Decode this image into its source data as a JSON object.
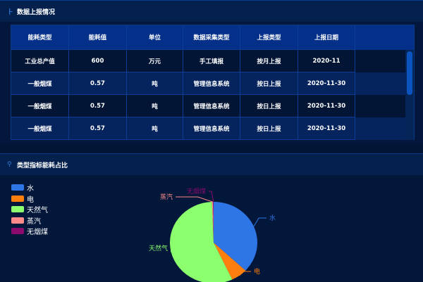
{
  "panel1": {
    "title": "数据上报情况",
    "icon": "pulse-icon"
  },
  "table": {
    "headers": [
      "能耗类型",
      "能耗值",
      "单位",
      "数据采集类型",
      "上报类型",
      "上报日期"
    ],
    "rows": [
      [
        "工业总产值",
        "600",
        "万元",
        "手工填报",
        "按月上报",
        "2020-11"
      ],
      [
        "一般烟煤",
        "0.57",
        "吨",
        "管理信息系统",
        "按日上报",
        "2020-11-30"
      ],
      [
        "一般烟煤",
        "0.57",
        "吨",
        "管理信息系统",
        "按日上报",
        "2020-11-30"
      ],
      [
        "一般烟煤",
        "0.57",
        "吨",
        "管理信息系统",
        "按日上报",
        "2020-11-30"
      ]
    ]
  },
  "panel2": {
    "title": "类型指标能耗占比",
    "icon": "antenna-icon"
  },
  "chart_data": {
    "type": "pie",
    "legend_position": "top-left",
    "categories": [
      "水",
      "电",
      "天然气",
      "蒸汽",
      "无烟煤"
    ],
    "values": [
      37,
      6,
      56.4,
      0.4,
      0.2
    ],
    "colors": [
      "#2e75e6",
      "#ff7f0e",
      "#8bff6e",
      "#ff8a8a",
      "#8b0a6e"
    ]
  }
}
